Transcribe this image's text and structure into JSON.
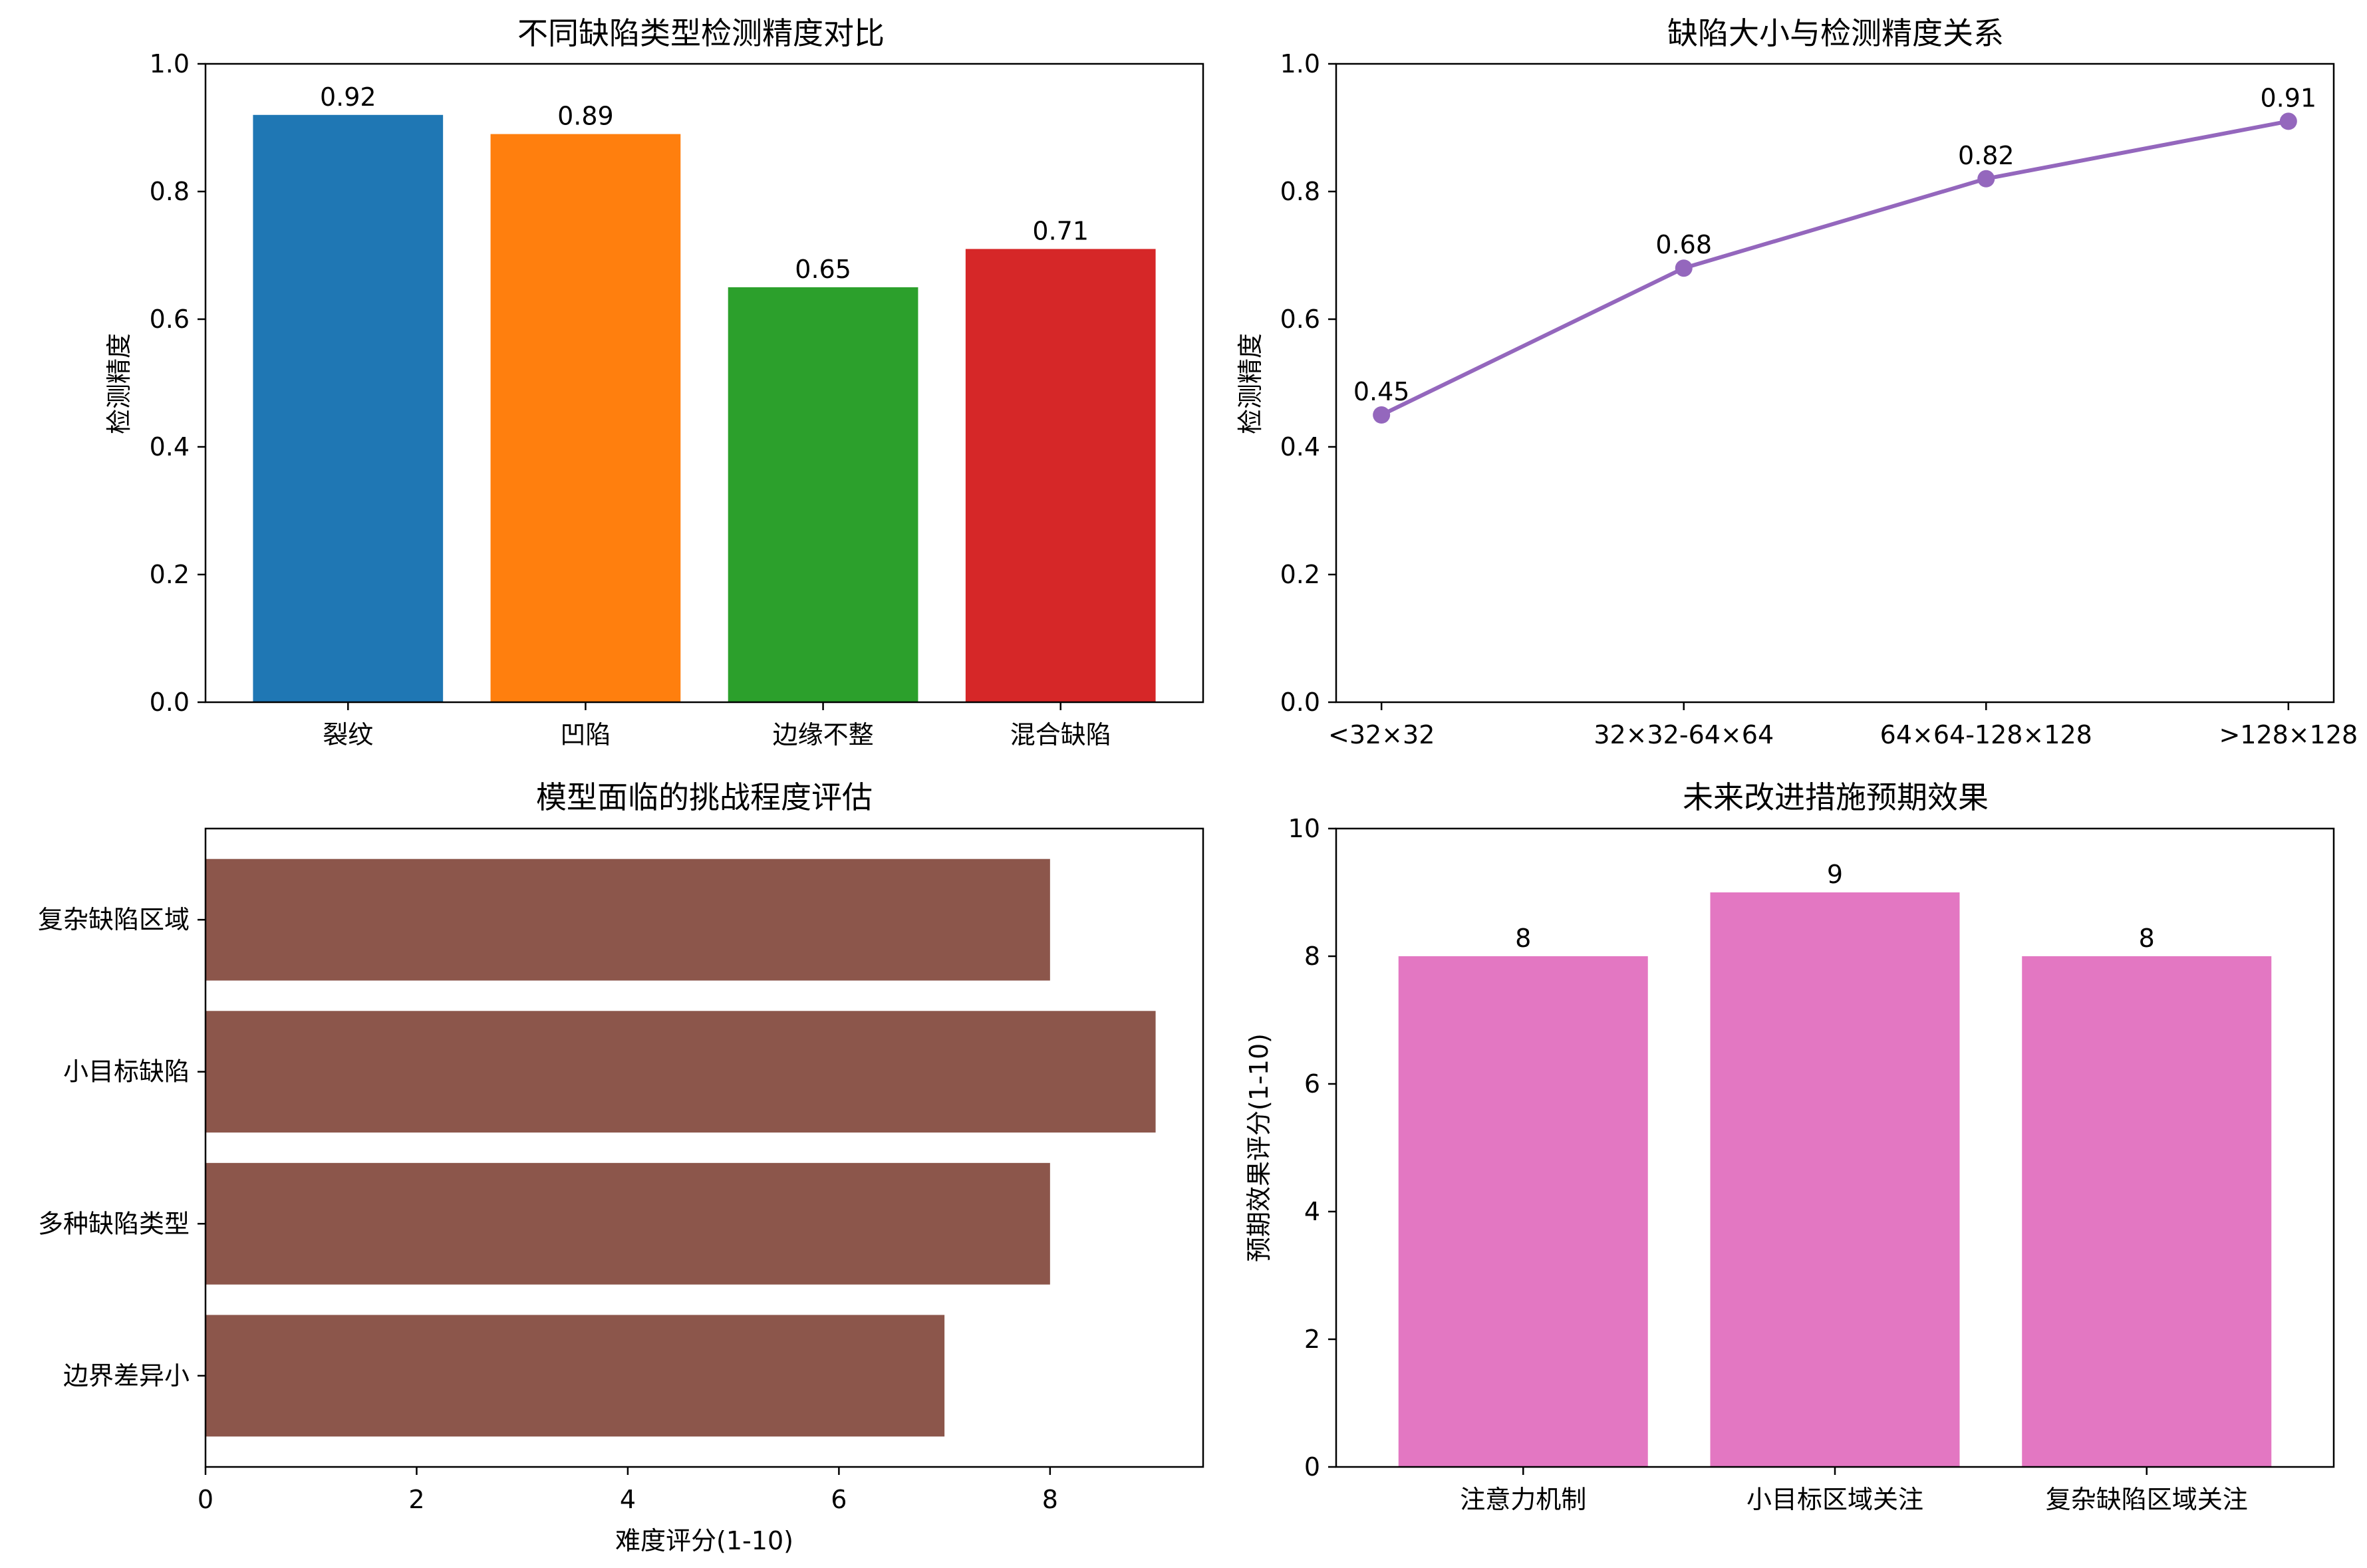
{
  "chart_data": [
    {
      "type": "bar",
      "title": "不同缺陷类型检测精度对比",
      "xlabel": "",
      "ylabel": "检测精度",
      "categories": [
        "裂纹",
        "凹陷",
        "边缘不整",
        "混合缺陷"
      ],
      "values": [
        0.92,
        0.89,
        0.65,
        0.71
      ],
      "value_labels": [
        "0.92",
        "0.89",
        "0.65",
        "0.71"
      ],
      "colors": [
        "#1f77b4",
        "#ff7f0e",
        "#2ca02c",
        "#d62728"
      ],
      "ylim": [
        0,
        1.0
      ],
      "yticks": [
        "0.0",
        "0.2",
        "0.4",
        "0.6",
        "0.8",
        "1.0"
      ]
    },
    {
      "type": "line",
      "title": "缺陷大小与检测精度关系",
      "xlabel": "",
      "ylabel": "检测精度",
      "categories": [
        "<32×32",
        "32×32-64×64",
        "64×64-128×128",
        ">128×128"
      ],
      "values": [
        0.45,
        0.68,
        0.82,
        0.91
      ],
      "value_labels": [
        "0.45",
        "0.68",
        "0.82",
        "0.91"
      ],
      "color": "#9467bd",
      "ylim": [
        0,
        1.0
      ],
      "yticks": [
        "0.0",
        "0.2",
        "0.4",
        "0.6",
        "0.8",
        "1.0"
      ]
    },
    {
      "type": "bar",
      "orientation": "horizontal",
      "title": "模型面临的挑战程度评估",
      "xlabel": "难度评分(1-10)",
      "ylabel": "",
      "categories": [
        "边界差异小",
        "多种缺陷类型",
        "小目标缺陷",
        "复杂缺陷区域"
      ],
      "values": [
        7,
        8,
        9,
        8
      ],
      "color": "#8c564b",
      "xlim": [
        0,
        9.45
      ],
      "xticks": [
        "0",
        "2",
        "4",
        "6",
        "8"
      ]
    },
    {
      "type": "bar",
      "title": "未来改进措施预期效果",
      "xlabel": "",
      "ylabel": "预期效果评分(1-10)",
      "categories": [
        "注意力机制",
        "小目标区域关注",
        "复杂缺陷区域关注"
      ],
      "values": [
        8,
        9,
        8
      ],
      "value_labels": [
        "8",
        "9",
        "8"
      ],
      "color": "#e377c2",
      "ylim": [
        0,
        10
      ],
      "yticks": [
        "0",
        "2",
        "4",
        "6",
        "8",
        "10"
      ]
    }
  ]
}
